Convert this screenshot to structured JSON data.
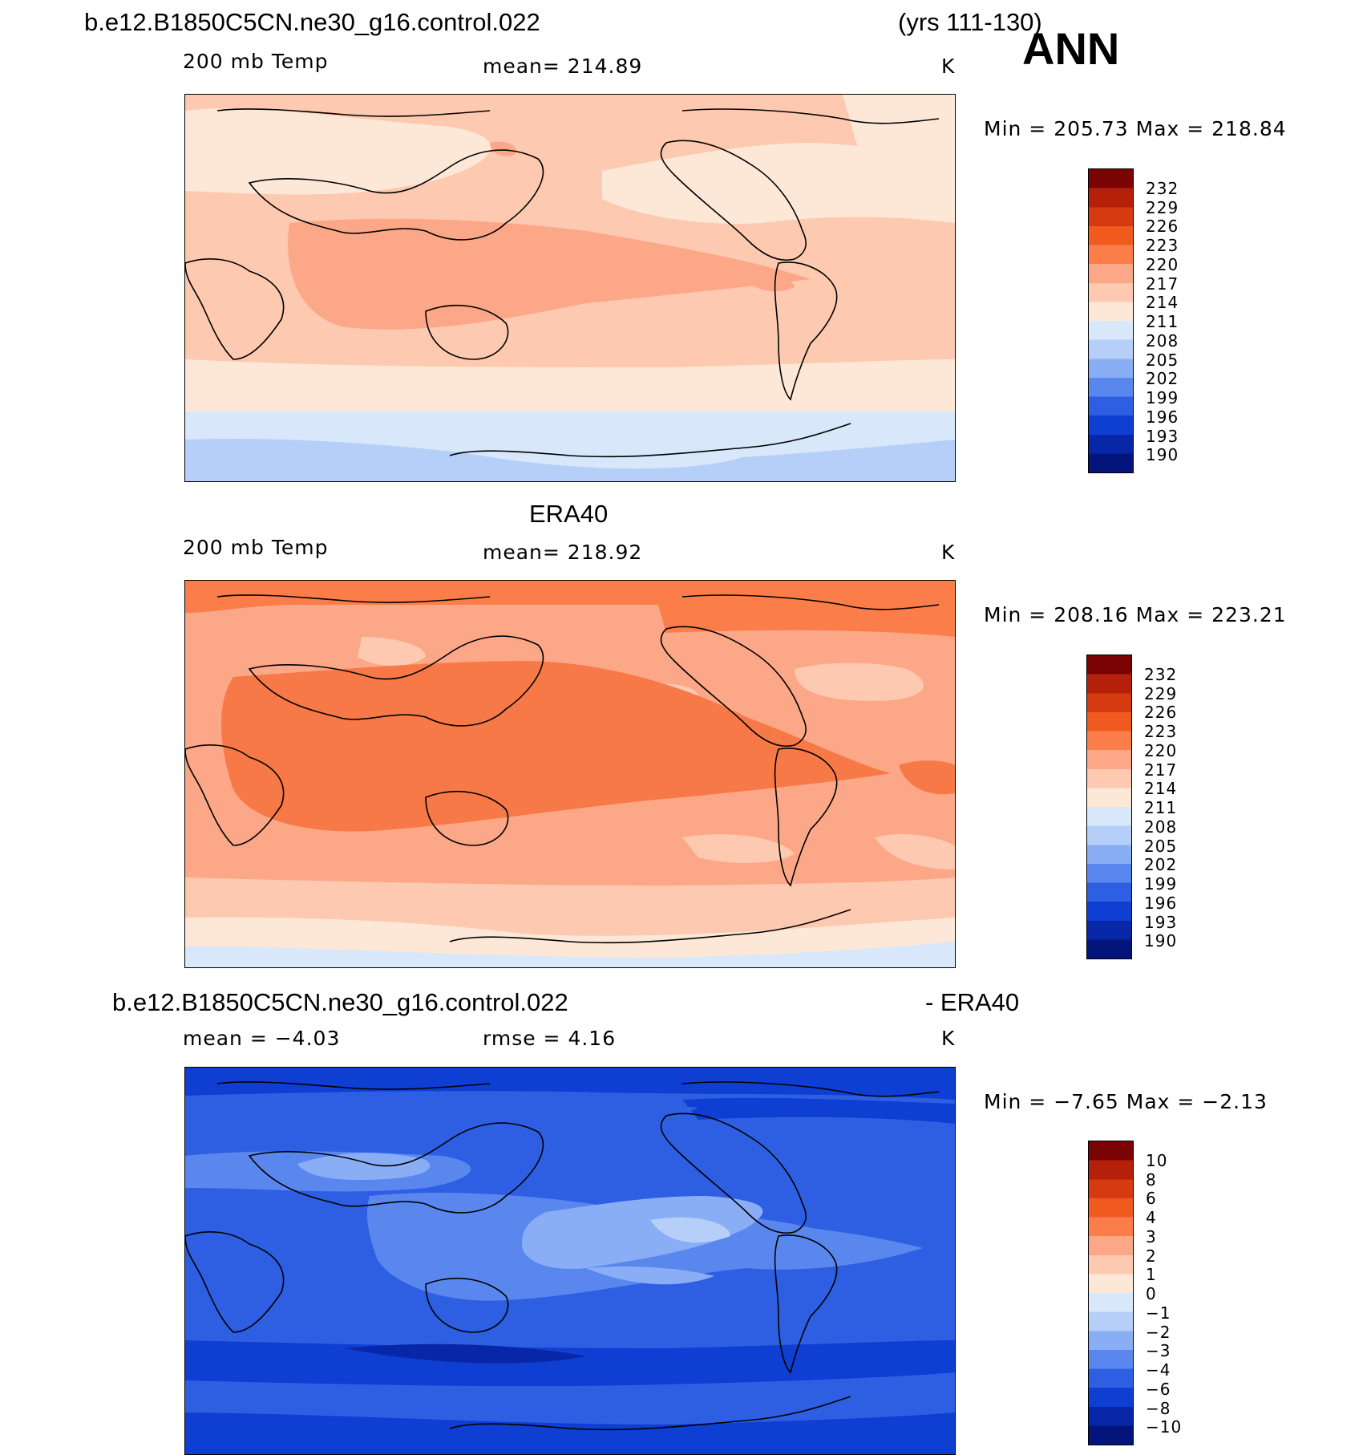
{
  "header": {
    "case_name": "b.e12.B1850C5CN.ne30_g16.control.022",
    "years": "(yrs 111-130)",
    "season": "ANN"
  },
  "panels": [
    {
      "id": "model",
      "title": "",
      "left_label": "200 mb Temp",
      "center_label": "mean= 214.89",
      "units": "K",
      "minmax": "Min = 205.73 Max = 218.84",
      "colorbar_ticks": [
        "232",
        "229",
        "226",
        "223",
        "220",
        "217",
        "214",
        "211",
        "208",
        "205",
        "202",
        "199",
        "196",
        "193",
        "190"
      ]
    },
    {
      "id": "obs",
      "title": "ERA40",
      "left_label": "200 mb Temp",
      "center_label": "mean= 218.92",
      "units": "K",
      "minmax": "Min = 208.16 Max = 223.21",
      "colorbar_ticks": [
        "232",
        "229",
        "226",
        "223",
        "220",
        "217",
        "214",
        "211",
        "208",
        "205",
        "202",
        "199",
        "196",
        "193",
        "190"
      ]
    },
    {
      "id": "diff",
      "title_left": "b.e12.B1850C5CN.ne30_g16.control.022",
      "title_right": "- ERA40",
      "left_label": "mean =  −4.03",
      "center_label": "rmse =    4.16",
      "units": "K",
      "minmax": "Min =  −7.65 Max =  −2.13",
      "colorbar_ticks": [
        "10",
        "8",
        "6",
        "4",
        "3",
        "2",
        "1",
        "0",
        "−1",
        "−2",
        "−3",
        "−4",
        "−6",
        "−8",
        "−10"
      ]
    }
  ],
  "colors": {
    "colorbar_scale": [
      "#7a0403",
      "#b5200b",
      "#d63a11",
      "#f05a1f",
      "#fb7e4a",
      "#fca787",
      "#fdc9b0",
      "#fde8d8",
      "#d8e7fa",
      "#b6cff8",
      "#8aaef5",
      "#5a87ee",
      "#2e5fe3",
      "#0f3ed2",
      "#0826a8",
      "#03157a"
    ]
  }
}
